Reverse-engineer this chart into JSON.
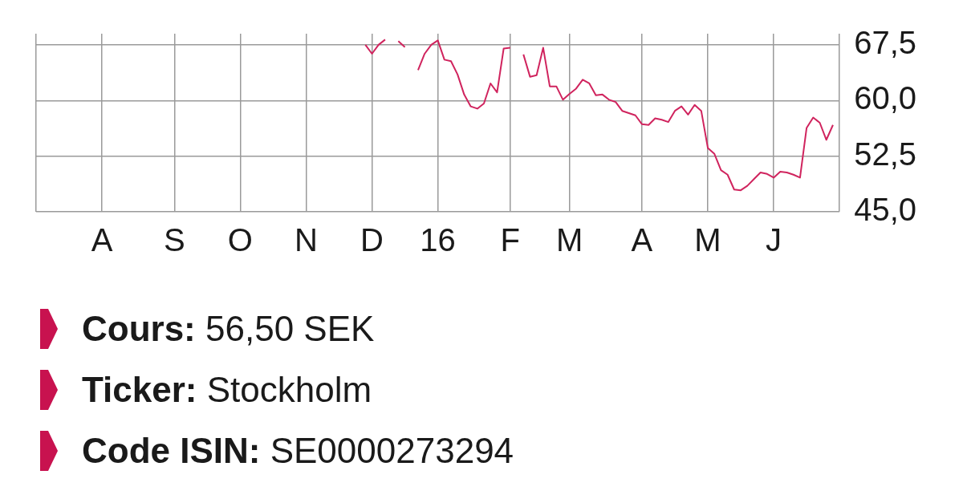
{
  "chart_data": {
    "type": "line",
    "categories": [
      null,
      null,
      null,
      null,
      null,
      null,
      null,
      null,
      null,
      null,
      "A",
      null,
      null,
      null,
      null,
      null,
      null,
      null,
      null,
      null,
      null,
      "S",
      null,
      null,
      null,
      null,
      null,
      null,
      null,
      null,
      null,
      "O",
      null,
      null,
      null,
      null,
      null,
      null,
      null,
      null,
      null,
      "N",
      null,
      null,
      null,
      null,
      null,
      null,
      null,
      null,
      null,
      "D",
      null,
      null,
      null,
      null,
      null,
      null,
      null,
      null,
      null,
      "16",
      null,
      null,
      null,
      null,
      null,
      null,
      null,
      null,
      null,
      null,
      "F",
      null,
      null,
      null,
      null,
      null,
      null,
      null,
      null,
      "M",
      null,
      null,
      null,
      null,
      null,
      null,
      null,
      null,
      null,
      null,
      "A",
      null,
      null,
      null,
      null,
      null,
      null,
      null,
      null,
      null,
      "M",
      null,
      null,
      null,
      null,
      null,
      null,
      null,
      null,
      null,
      "J",
      null,
      null,
      null,
      null,
      null,
      null,
      null,
      null,
      null,
      null
    ],
    "series": [
      {
        "color": "#d0245e",
        "values": [
          null,
          null,
          null,
          null,
          null,
          null,
          null,
          null,
          null,
          null,
          null,
          null,
          null,
          null,
          null,
          null,
          null,
          null,
          null,
          null,
          null,
          null,
          null,
          null,
          null,
          null,
          null,
          null,
          null,
          null,
          null,
          null,
          null,
          null,
          null,
          null,
          null,
          null,
          null,
          null,
          null,
          null,
          null,
          null,
          null,
          null,
          null,
          null,
          null,
          null,
          67.5,
          66.3,
          67.5,
          68.2,
          null,
          68.0,
          67.2,
          null,
          64.1,
          66.3,
          67.5,
          68.1,
          65.5,
          65.3,
          63.5,
          60.8,
          59.2,
          58.9,
          59.6,
          62.3,
          61.1,
          67.0,
          67.1,
          null,
          66.2,
          63.2,
          63.4,
          67.1,
          61.9,
          61.9,
          60.1,
          60.9,
          61.6,
          62.8,
          62.3,
          60.7,
          60.8,
          60.1,
          59.8,
          58.6,
          58.3,
          58.0,
          56.8,
          56.7,
          57.6,
          57.4,
          57.1,
          58.6,
          59.2,
          58.1,
          59.4,
          58.6,
          53.6,
          52.8,
          50.6,
          50.0,
          48.0,
          47.9,
          48.5,
          49.4,
          50.3,
          50.1,
          49.6,
          50.4,
          50.3,
          50.0,
          49.6,
          56.3,
          57.7,
          57.0,
          54.7,
          56.7,
          null
        ]
      }
    ],
    "ylim": [
      45,
      69
    ],
    "yticks": [
      {
        "value": 45,
        "label": "45,0"
      },
      {
        "value": 52.5,
        "label": "52,5"
      },
      {
        "value": 60,
        "label": "60,0"
      },
      {
        "value": 67.5,
        "label": "67,5"
      }
    ],
    "grid": true,
    "marker": "none",
    "line_style": "solid",
    "annotations": [
      "Cours: 56,50 SEK",
      "Ticker: Stockholm",
      "Code ISIN: SE0000273294"
    ]
  }
}
